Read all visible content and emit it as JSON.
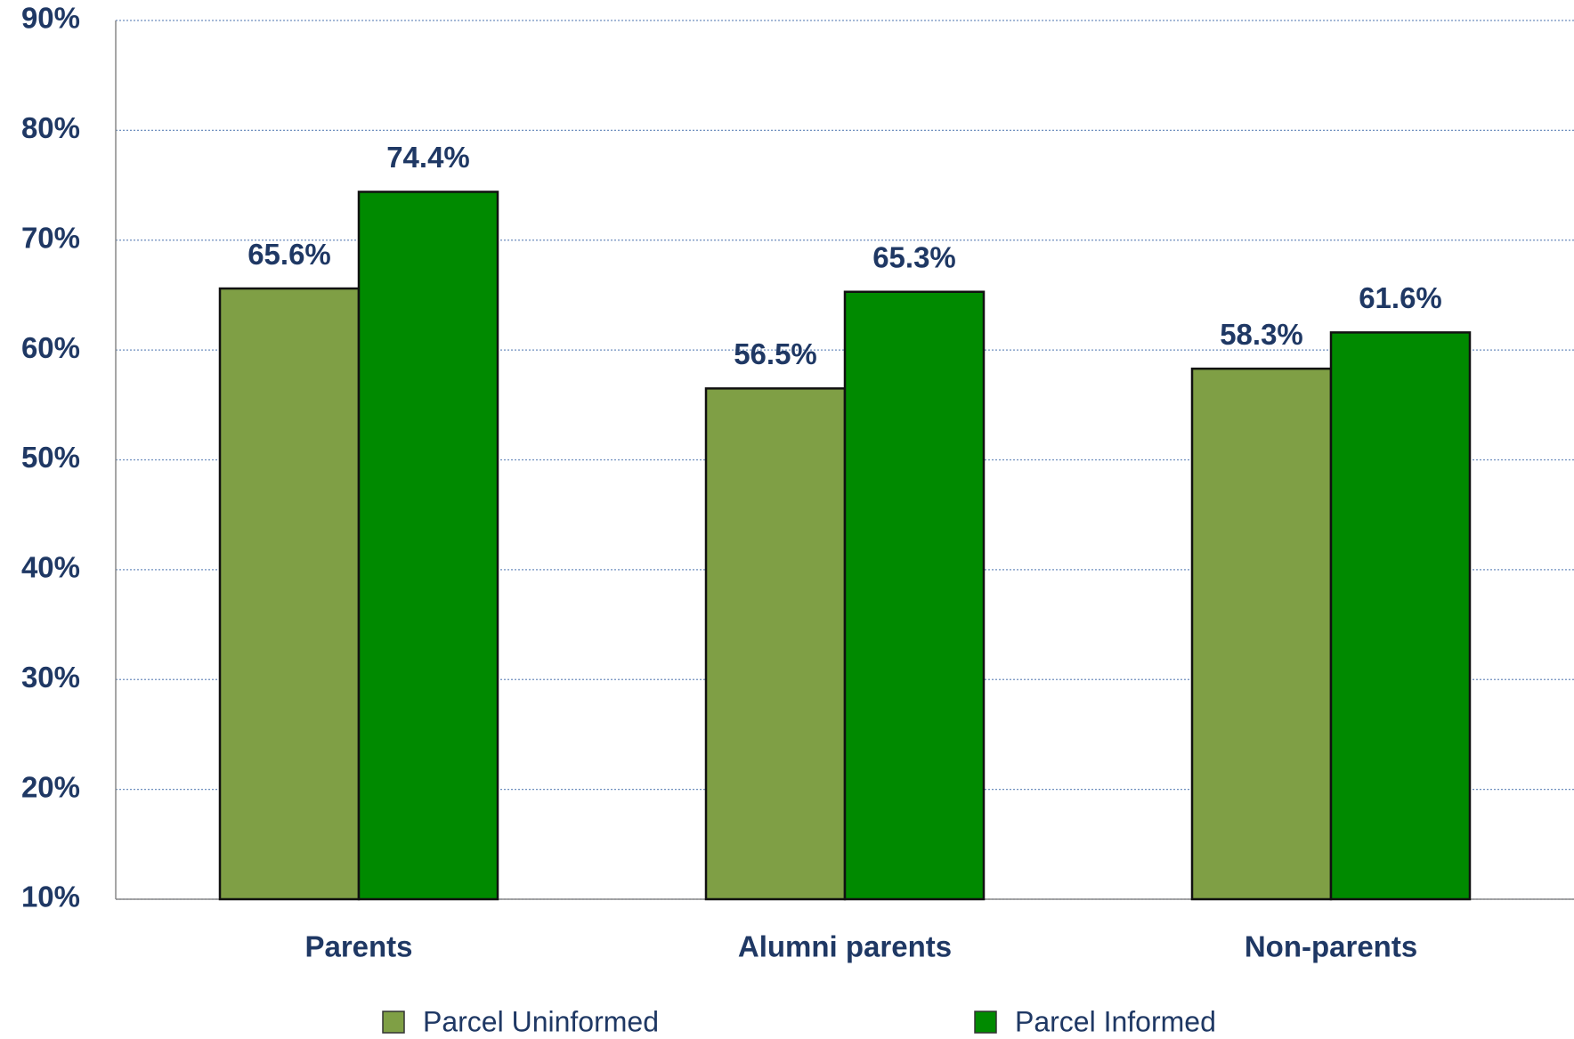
{
  "chart_data": {
    "type": "bar",
    "categories": [
      "Parents",
      "Alumni parents",
      "Non-parents"
    ],
    "series": [
      {
        "name": "Parcel Uninformed",
        "color": "#7f9f45",
        "values": [
          65.6,
          56.5,
          58.3
        ],
        "value_labels": [
          "65.6%",
          "56.5%",
          "58.3%"
        ]
      },
      {
        "name": "Parcel Informed",
        "color": "#008a00",
        "values": [
          74.4,
          65.3,
          61.6
        ],
        "value_labels": [
          "74.4%",
          "65.3%",
          "61.6%"
        ]
      }
    ],
    "ylim": [
      10,
      90
    ],
    "yticks": [
      {
        "value": 10,
        "label": "10%"
      },
      {
        "value": 20,
        "label": "20%"
      },
      {
        "value": 30,
        "label": "30%"
      },
      {
        "value": 40,
        "label": "40%"
      },
      {
        "value": 50,
        "label": "50%"
      },
      {
        "value": 60,
        "label": "60%"
      },
      {
        "value": 70,
        "label": "70%"
      },
      {
        "value": 80,
        "label": "80%"
      },
      {
        "value": 90,
        "label": "90%"
      }
    ],
    "grid": true,
    "legend": "bottom"
  }
}
